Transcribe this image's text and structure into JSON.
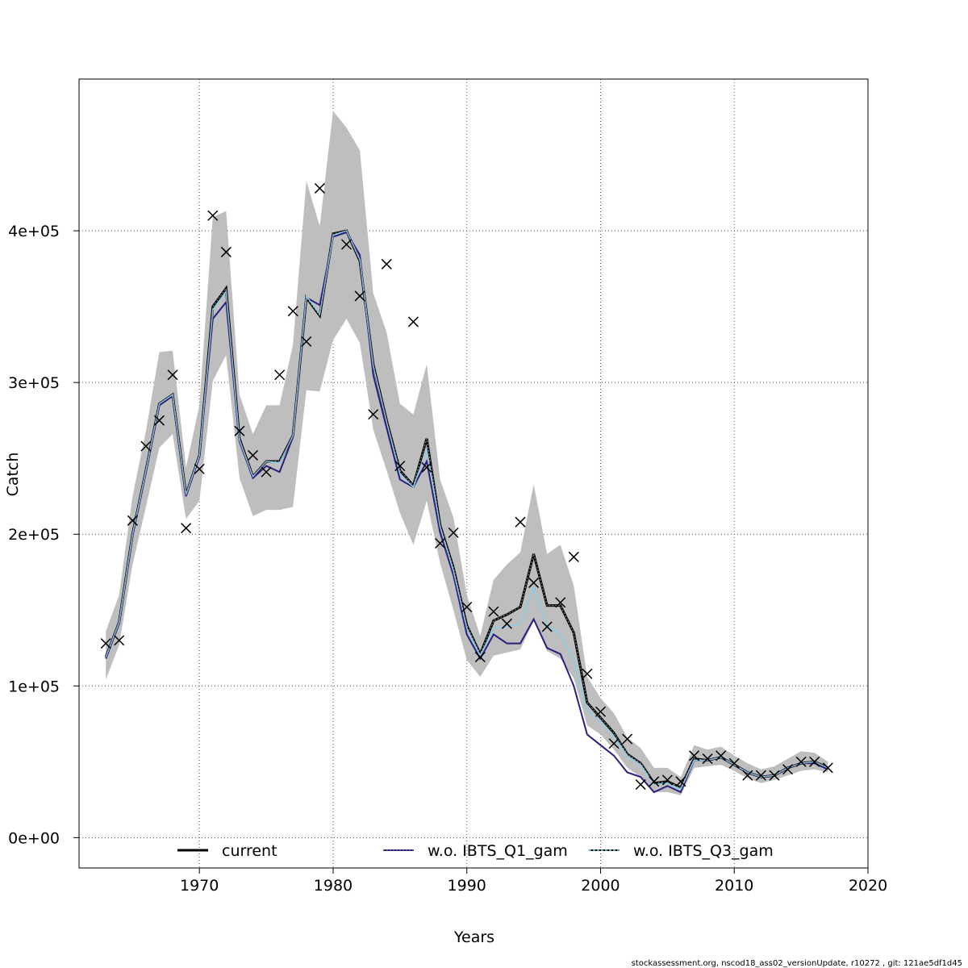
{
  "chart_data": {
    "type": "line",
    "title": "",
    "xlabel": "Years",
    "ylabel": "Catch",
    "xlim": [
      1961,
      2020
    ],
    "ylim": [
      -20000,
      500000
    ],
    "x_ticks": [
      1970,
      1980,
      1990,
      2000,
      2010,
      2020
    ],
    "x_tick_labels": [
      "1970",
      "1980",
      "1990",
      "2000",
      "2010",
      "2020"
    ],
    "y_ticks": [
      0,
      100000,
      200000,
      300000,
      400000
    ],
    "y_tick_labels": [
      "0e+00",
      "1e+05",
      "2e+05",
      "3e+05",
      "4e+05"
    ],
    "grid": true,
    "legend_position": "bottom",
    "colors": {
      "ci_band": "#bebebe",
      "current": "#000000",
      "q1": "#2b1e7e",
      "q3": "#87ceeb"
    },
    "years": [
      1963,
      1964,
      1965,
      1966,
      1967,
      1968,
      1969,
      1970,
      1971,
      1972,
      1973,
      1974,
      1975,
      1976,
      1977,
      1978,
      1979,
      1980,
      1981,
      1982,
      1983,
      1984,
      1985,
      1986,
      1987,
      1988,
      1989,
      1990,
      1991,
      1992,
      1993,
      1994,
      1995,
      1996,
      1997,
      1998,
      1999,
      2000,
      2001,
      2002,
      2003,
      2004,
      2005,
      2006,
      2007,
      2008,
      2009,
      2010,
      2011,
      2012,
      2013,
      2014,
      2015,
      2016,
      2017
    ],
    "ci_upper": [
      136000,
      160000,
      225000,
      268000,
      320000,
      321000,
      244000,
      285000,
      409000,
      413000,
      292000,
      266000,
      285000,
      285000,
      325000,
      433000,
      403000,
      479000,
      468000,
      453000,
      359000,
      333000,
      286000,
      279000,
      312000,
      236000,
      211000,
      160000,
      133000,
      170000,
      180000,
      188000,
      233000,
      187000,
      193000,
      166000,
      106000,
      92000,
      82000,
      66000,
      59000,
      46000,
      46000,
      40000,
      61000,
      58000,
      60000,
      54000,
      49000,
      45000,
      47000,
      52000,
      57000,
      56000,
      50000
    ],
    "ci_lower": [
      104000,
      127000,
      180000,
      218000,
      257000,
      266000,
      210000,
      222000,
      301000,
      318000,
      237000,
      212000,
      216000,
      216000,
      218000,
      295000,
      294000,
      328000,
      342000,
      326000,
      269000,
      242000,
      214000,
      193000,
      222000,
      181000,
      150000,
      117000,
      106000,
      120000,
      122000,
      124000,
      143000,
      123000,
      118000,
      105000,
      74000,
      68000,
      58000,
      46000,
      40000,
      30000,
      30000,
      28000,
      46000,
      47000,
      48000,
      44000,
      39000,
      36000,
      38000,
      41000,
      44000,
      45000,
      43000
    ],
    "series": [
      {
        "name": "current",
        "values": [
          119000,
          142000,
          200000,
          242000,
          286000,
          292000,
          226000,
          252000,
          350000,
          362000,
          263000,
          238000,
          248000,
          248000,
          265000,
          356000,
          344000,
          398000,
          400000,
          380000,
          312000,
          275000,
          242000,
          232000,
          263000,
          206000,
          178000,
          140000,
          121000,
          143000,
          147000,
          152000,
          187000,
          153000,
          153000,
          135000,
          89000,
          79000,
          69000,
          55000,
          49000,
          36000,
          37000,
          33000,
          52000,
          51000,
          53000,
          48000,
          43000,
          40000,
          41000,
          46000,
          49000,
          50000,
          46000
        ]
      },
      {
        "name": "w.o. IBTS_Q1_gam",
        "values": [
          118000,
          141000,
          199000,
          241000,
          285000,
          291000,
          225000,
          251000,
          342000,
          353000,
          261000,
          237000,
          245000,
          241000,
          264000,
          356000,
          351000,
          396000,
          399000,
          384000,
          305000,
          270000,
          236000,
          231000,
          248000,
          201000,
          173000,
          134000,
          118000,
          134000,
          128000,
          128000,
          144000,
          125000,
          121000,
          100000,
          68000,
          61000,
          54000,
          43000,
          40000,
          30000,
          34000,
          30000,
          51000,
          51000,
          53000,
          48000,
          43000,
          40000,
          41000,
          46000,
          49000,
          49000,
          45000
        ]
      },
      {
        "name": "w.o. IBTS_Q3_gam",
        "values": [
          119000,
          142000,
          200000,
          242000,
          286000,
          292000,
          226000,
          252000,
          348000,
          360000,
          262000,
          238000,
          248000,
          247000,
          265000,
          357000,
          345000,
          397000,
          400000,
          381000,
          311000,
          274000,
          240000,
          231000,
          256000,
          205000,
          176000,
          138000,
          120000,
          138000,
          139000,
          141000,
          165000,
          140000,
          134000,
          117000,
          84000,
          77000,
          67000,
          54000,
          48000,
          35000,
          36000,
          32000,
          51000,
          51000,
          53000,
          48000,
          43000,
          40000,
          41000,
          46000,
          49000,
          50000,
          46000
        ]
      }
    ],
    "observed": [
      {
        "x": 1963,
        "y": 128000
      },
      {
        "x": 1964,
        "y": 130000
      },
      {
        "x": 1965,
        "y": 209000
      },
      {
        "x": 1966,
        "y": 258000
      },
      {
        "x": 1967,
        "y": 275000
      },
      {
        "x": 1968,
        "y": 305000
      },
      {
        "x": 1969,
        "y": 204000
      },
      {
        "x": 1970,
        "y": 243000
      },
      {
        "x": 1971,
        "y": 410000
      },
      {
        "x": 1972,
        "y": 386000
      },
      {
        "x": 1973,
        "y": 268000
      },
      {
        "x": 1974,
        "y": 252000
      },
      {
        "x": 1975,
        "y": 241000
      },
      {
        "x": 1976,
        "y": 305000
      },
      {
        "x": 1977,
        "y": 347000
      },
      {
        "x": 1978,
        "y": 327000
      },
      {
        "x": 1979,
        "y": 428000
      },
      {
        "x": 1981,
        "y": 391000
      },
      {
        "x": 1982,
        "y": 357000
      },
      {
        "x": 1983,
        "y": 279000
      },
      {
        "x": 1984,
        "y": 378000
      },
      {
        "x": 1985,
        "y": 245000
      },
      {
        "x": 1986,
        "y": 340000
      },
      {
        "x": 1987,
        "y": 244000
      },
      {
        "x": 1988,
        "y": 194000
      },
      {
        "x": 1989,
        "y": 201000
      },
      {
        "x": 1990,
        "y": 152000
      },
      {
        "x": 1991,
        "y": 119000
      },
      {
        "x": 1992,
        "y": 149000
      },
      {
        "x": 1993,
        "y": 141000
      },
      {
        "x": 1994,
        "y": 208000
      },
      {
        "x": 1995,
        "y": 168000
      },
      {
        "x": 1996,
        "y": 139000
      },
      {
        "x": 1997,
        "y": 155000
      },
      {
        "x": 1998,
        "y": 185000
      },
      {
        "x": 1999,
        "y": 108000
      },
      {
        "x": 2000,
        "y": 83000
      },
      {
        "x": 2001,
        "y": 62000
      },
      {
        "x": 2002,
        "y": 65000
      },
      {
        "x": 2003,
        "y": 35000
      },
      {
        "x": 2004,
        "y": 37000
      },
      {
        "x": 2005,
        "y": 38000
      },
      {
        "x": 2006,
        "y": 37000
      },
      {
        "x": 2007,
        "y": 54000
      },
      {
        "x": 2008,
        "y": 52000
      },
      {
        "x": 2009,
        "y": 54000
      },
      {
        "x": 2010,
        "y": 49000
      },
      {
        "x": 2011,
        "y": 41000
      },
      {
        "x": 2012,
        "y": 41000
      },
      {
        "x": 2013,
        "y": 41000
      },
      {
        "x": 2014,
        "y": 45000
      },
      {
        "x": 2015,
        "y": 50000
      },
      {
        "x": 2016,
        "y": 50000
      },
      {
        "x": 2017,
        "y": 46000
      }
    ],
    "legend": [
      "current",
      "w.o. IBTS_Q1_gam",
      "w.o. IBTS_Q3_gam"
    ]
  },
  "footer": "stockassessment.org, nscod18_ass02_versionUpdate, r10272 , git: 121ae5df1d45"
}
